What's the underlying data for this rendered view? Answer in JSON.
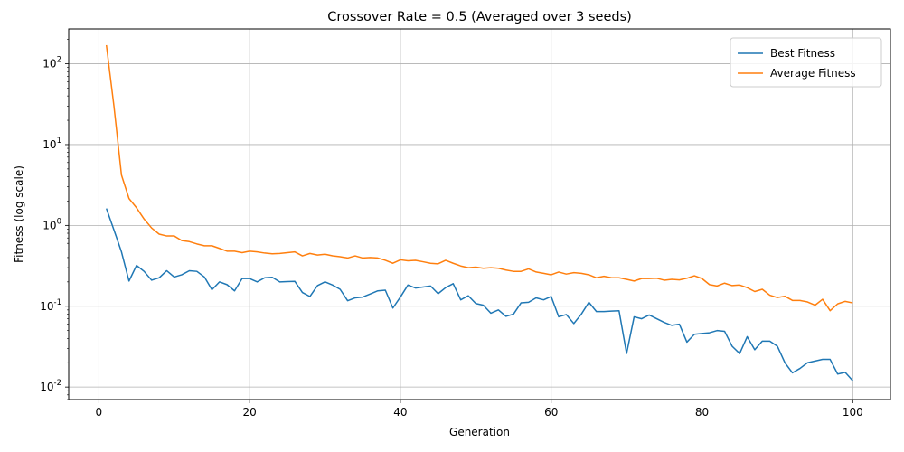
{
  "chart_data": {
    "type": "line",
    "title": "Crossover Rate = 0.5 (Averaged over 3 seeds)",
    "xlabel": "Generation",
    "ylabel": "Fitness (log scale)",
    "xlim": [
      -4,
      105
    ],
    "ylim": [
      0.007,
      270
    ],
    "yscale": "log",
    "grid": true,
    "legend_position": "top-right",
    "x_ticks": [
      0,
      20,
      40,
      60,
      80,
      100
    ],
    "x_tick_labels": [
      "0",
      "20",
      "40",
      "60",
      "80",
      "100"
    ],
    "y_ticks": [
      0.01,
      0.1,
      1,
      10,
      100
    ],
    "y_tick_labels": [
      "10^-2",
      "10^-1",
      "10^0",
      "10^1",
      "10^2"
    ],
    "x": [
      1,
      2,
      3,
      4,
      5,
      6,
      7,
      8,
      9,
      10,
      11,
      12,
      13,
      14,
      15,
      16,
      17,
      18,
      19,
      20,
      21,
      22,
      23,
      24,
      25,
      26,
      27,
      28,
      29,
      30,
      31,
      32,
      33,
      34,
      35,
      36,
      37,
      38,
      39,
      40,
      41,
      42,
      43,
      44,
      45,
      46,
      47,
      48,
      49,
      50,
      51,
      52,
      53,
      54,
      55,
      56,
      57,
      58,
      59,
      60,
      61,
      62,
      63,
      64,
      65,
      66,
      67,
      68,
      69,
      70,
      71,
      72,
      73,
      74,
      75,
      76,
      77,
      78,
      79,
      80,
      81,
      82,
      83,
      84,
      85,
      86,
      87,
      88,
      89,
      90,
      91,
      92,
      93,
      94,
      95,
      96,
      97,
      98,
      99,
      100
    ],
    "series": [
      {
        "name": "Best Fitness",
        "color": "#1f77b4",
        "values": [
          1.62,
          0.88,
          0.47,
          0.205,
          0.32,
          0.27,
          0.21,
          0.225,
          0.275,
          0.23,
          0.245,
          0.275,
          0.27,
          0.23,
          0.16,
          0.2,
          0.185,
          0.155,
          0.22,
          0.22,
          0.2,
          0.225,
          0.228,
          0.2,
          0.202,
          0.203,
          0.148,
          0.132,
          0.18,
          0.2,
          0.183,
          0.162,
          0.117,
          0.127,
          0.13,
          0.142,
          0.155,
          0.158,
          0.095,
          0.13,
          0.183,
          0.168,
          0.173,
          0.178,
          0.143,
          0.17,
          0.19,
          0.12,
          0.135,
          0.108,
          0.103,
          0.082,
          0.09,
          0.075,
          0.08,
          0.11,
          0.112,
          0.127,
          0.12,
          0.132,
          0.074,
          0.079,
          0.061,
          0.08,
          0.112,
          0.086,
          0.086,
          0.087,
          0.088,
          0.026,
          0.074,
          0.07,
          0.078,
          0.07,
          0.063,
          0.058,
          0.06,
          0.036,
          0.045,
          0.046,
          0.047,
          0.05,
          0.049,
          0.032,
          0.026,
          0.042,
          0.029,
          0.037,
          0.037,
          0.032,
          0.02,
          0.015,
          0.017,
          0.02,
          0.021,
          0.022,
          0.022,
          0.0145,
          0.0152,
          0.012
        ]
      },
      {
        "name": "Average Fitness",
        "color": "#ff7f0e",
        "values": [
          170,
          30,
          4.2,
          2.15,
          1.65,
          1.2,
          0.93,
          0.78,
          0.74,
          0.74,
          0.65,
          0.63,
          0.59,
          0.56,
          0.56,
          0.52,
          0.48,
          0.48,
          0.46,
          0.48,
          0.47,
          0.455,
          0.445,
          0.45,
          0.46,
          0.47,
          0.42,
          0.45,
          0.43,
          0.44,
          0.42,
          0.41,
          0.395,
          0.42,
          0.395,
          0.4,
          0.395,
          0.37,
          0.34,
          0.375,
          0.365,
          0.37,
          0.355,
          0.34,
          0.335,
          0.37,
          0.34,
          0.315,
          0.3,
          0.305,
          0.295,
          0.3,
          0.295,
          0.28,
          0.27,
          0.27,
          0.29,
          0.265,
          0.255,
          0.245,
          0.265,
          0.25,
          0.26,
          0.255,
          0.245,
          0.225,
          0.235,
          0.225,
          0.225,
          0.215,
          0.205,
          0.22,
          0.22,
          0.222,
          0.21,
          0.215,
          0.212,
          0.222,
          0.238,
          0.22,
          0.185,
          0.178,
          0.193,
          0.18,
          0.183,
          0.17,
          0.152,
          0.162,
          0.137,
          0.128,
          0.133,
          0.118,
          0.118,
          0.113,
          0.103,
          0.122,
          0.088,
          0.107,
          0.115,
          0.11
        ]
      }
    ]
  }
}
